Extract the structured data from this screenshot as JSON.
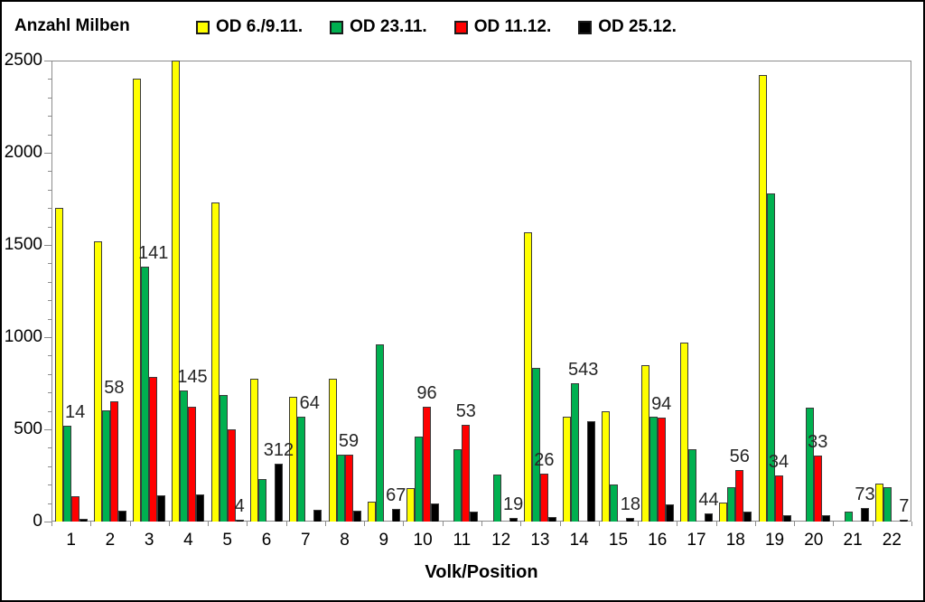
{
  "title": "Anzahl Milben",
  "x_axis_title": "Volk/Position",
  "legend": [
    {
      "label": "OD 6./9.11.",
      "color": "#FFFF00"
    },
    {
      "label": "OD 23.11.",
      "color": "#00B050"
    },
    {
      "label": "OD 11.12.",
      "color": "#FF0000"
    },
    {
      "label": "OD 25.12.",
      "color": "#000000"
    }
  ],
  "chart_data": {
    "type": "bar",
    "title": "Anzahl Milben",
    "xlabel": "Volk/Position",
    "ylabel": "Anzahl Milben",
    "categories": [
      1,
      2,
      3,
      4,
      5,
      6,
      7,
      8,
      9,
      10,
      11,
      12,
      13,
      14,
      15,
      16,
      17,
      18,
      19,
      20,
      21,
      22
    ],
    "ylim": [
      0,
      2500
    ],
    "y_major_step": 500,
    "y_minor_step": 100,
    "y_tick_labels": [
      "0",
      "500",
      "1000",
      "1500",
      "2000",
      "2500"
    ],
    "grid": false,
    "legend_position": "top",
    "series": [
      {
        "name": "OD 6./9.11.",
        "color": "#FFFF00",
        "values": [
          1700,
          1520,
          2400,
          2500,
          1730,
          775,
          675,
          775,
          110,
          180,
          0,
          0,
          1570,
          570,
          600,
          850,
          970,
          105,
          2420,
          0,
          0,
          205
        ]
      },
      {
        "name": "OD 23.11.",
        "color": "#00B050",
        "values": [
          520,
          605,
          1380,
          710,
          685,
          230,
          570,
          365,
          960,
          460,
          390,
          255,
          835,
          750,
          200,
          570,
          390,
          185,
          1780,
          620,
          55,
          185
        ]
      },
      {
        "name": "OD 11.12.",
        "color": "#FF0000",
        "values": [
          135,
          650,
          785,
          625,
          500,
          0,
          0,
          365,
          0,
          625,
          525,
          0,
          260,
          0,
          0,
          565,
          0,
          280,
          250,
          360,
          0,
          0
        ]
      },
      {
        "name": "OD 25.12.",
        "color": "#000000",
        "values": [
          14,
          58,
          141,
          145,
          4,
          312,
          64,
          59,
          67,
          96,
          53,
          19,
          26,
          543,
          18,
          94,
          44,
          56,
          34,
          33,
          73,
          7
        ]
      }
    ],
    "data_labels": {
      "labeled_series": "OD 25.12.",
      "values": [
        "14",
        "58",
        "141",
        "145",
        "4",
        "312",
        "64",
        "59",
        "67",
        "96",
        "53",
        "19",
        "26",
        "543",
        "18",
        "94",
        "44",
        "56",
        "34",
        "33",
        "73",
        "7"
      ],
      "anchor_series_index": [
        1,
        2,
        1,
        1,
        3,
        3,
        1,
        2,
        3,
        2,
        2,
        3,
        2,
        1,
        3,
        2,
        3,
        2,
        2,
        2,
        3,
        3
      ]
    }
  }
}
